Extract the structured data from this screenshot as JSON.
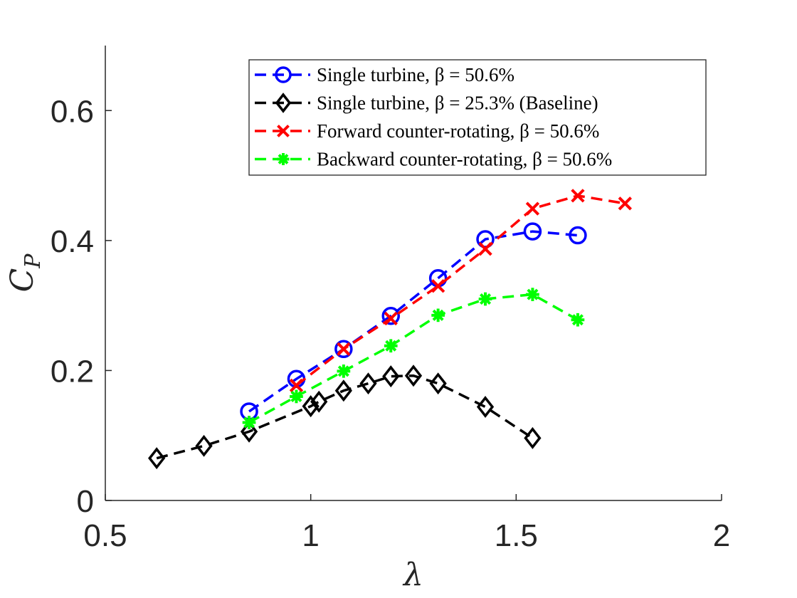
{
  "chart_data": {
    "type": "line",
    "xlabel": "λ",
    "ylabel": {
      "main": "C",
      "sub": "P"
    },
    "xlim": [
      0.5,
      2
    ],
    "ylim": [
      0,
      0.7
    ],
    "xticks": [
      0.5,
      1,
      1.5,
      2
    ],
    "xtick_labels": [
      "0.5",
      "1",
      "1.5",
      "2"
    ],
    "yticks": [
      0,
      0.2,
      0.4,
      0.6
    ],
    "ytick_labels": [
      "0",
      "0.2",
      "0.4",
      "0.6"
    ],
    "grid": false,
    "legend_position": "top-right",
    "series": [
      {
        "name": "Single turbine, β = 50.6%",
        "color": "#0000ff",
        "marker": "circle",
        "x": [
          0.85,
          0.965,
          1.08,
          1.195,
          1.31,
          1.425,
          1.54,
          1.65
        ],
        "y": [
          0.137,
          0.187,
          0.233,
          0.284,
          0.342,
          0.402,
          0.414,
          0.408
        ]
      },
      {
        "name": "Single turbine, β = 25.3% (Baseline)",
        "color": "#000000",
        "marker": "diamond",
        "x": [
          0.625,
          0.74,
          0.85,
          1.0,
          1.02,
          1.08,
          1.14,
          1.195,
          1.25,
          1.31,
          1.425,
          1.54
        ],
        "y": [
          0.065,
          0.084,
          0.106,
          0.145,
          0.152,
          0.169,
          0.18,
          0.191,
          0.192,
          0.18,
          0.144,
          0.096
        ]
      },
      {
        "name": "Forward counter-rotating, β = 50.6%",
        "color": "#ff0000",
        "marker": "x",
        "x": [
          0.965,
          1.08,
          1.195,
          1.31,
          1.425,
          1.54,
          1.65,
          1.765
        ],
        "y": [
          0.177,
          0.233,
          0.28,
          0.33,
          0.387,
          0.449,
          0.469,
          0.457
        ]
      },
      {
        "name": "Backward counter-rotating, β = 50.6%",
        "color": "#00ff00",
        "marker": "asterisk",
        "x": [
          0.85,
          0.965,
          1.08,
          1.195,
          1.31,
          1.425,
          1.54,
          1.65
        ],
        "y": [
          0.12,
          0.16,
          0.199,
          0.238,
          0.285,
          0.31,
          0.317,
          0.278
        ]
      }
    ]
  }
}
